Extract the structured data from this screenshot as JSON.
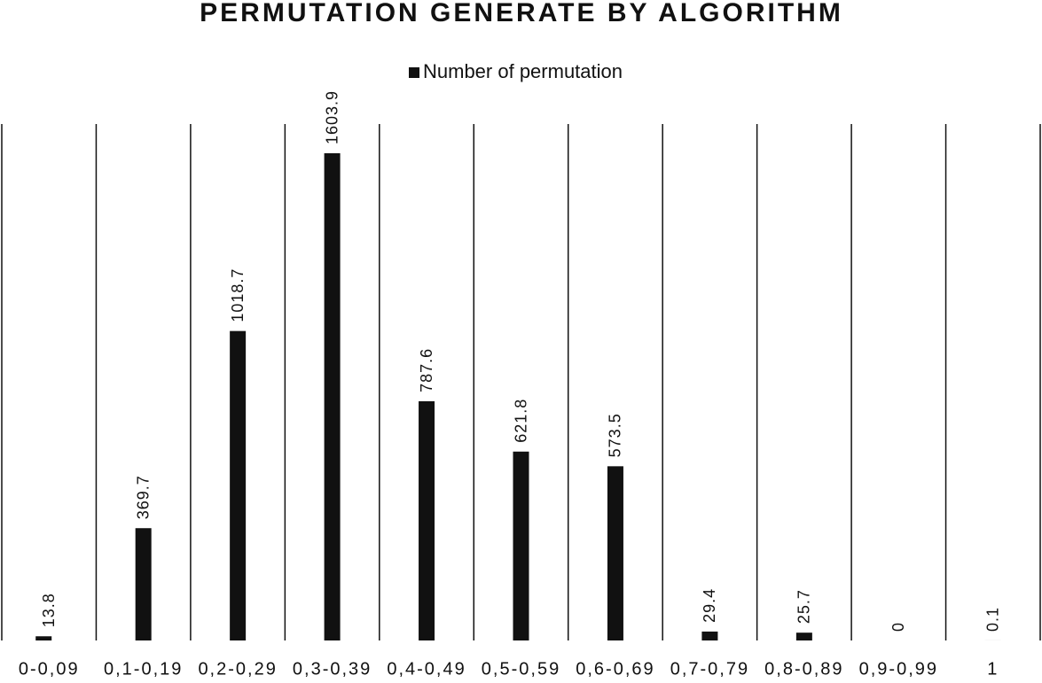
{
  "chart_data": {
    "type": "bar",
    "title": "PERMUTATION GENERATE BY ALGORITHM",
    "categories": [
      "0-0,09",
      "0,1-0,19",
      "0,2-0,29",
      "0,3-0,39",
      "0,4-0,49",
      "0,5-0,59",
      "0,6-0,69",
      "0,7-0,79",
      "0,8-0,89",
      "0,9-0,99",
      "1"
    ],
    "series": [
      {
        "name": "Number of permutation",
        "color": "#111111",
        "values": [
          13.8,
          369.7,
          1018.7,
          1603.9,
          787.6,
          621.8,
          573.5,
          29.4,
          25.7,
          0,
          0.1
        ]
      }
    ],
    "legend": "top"
  }
}
